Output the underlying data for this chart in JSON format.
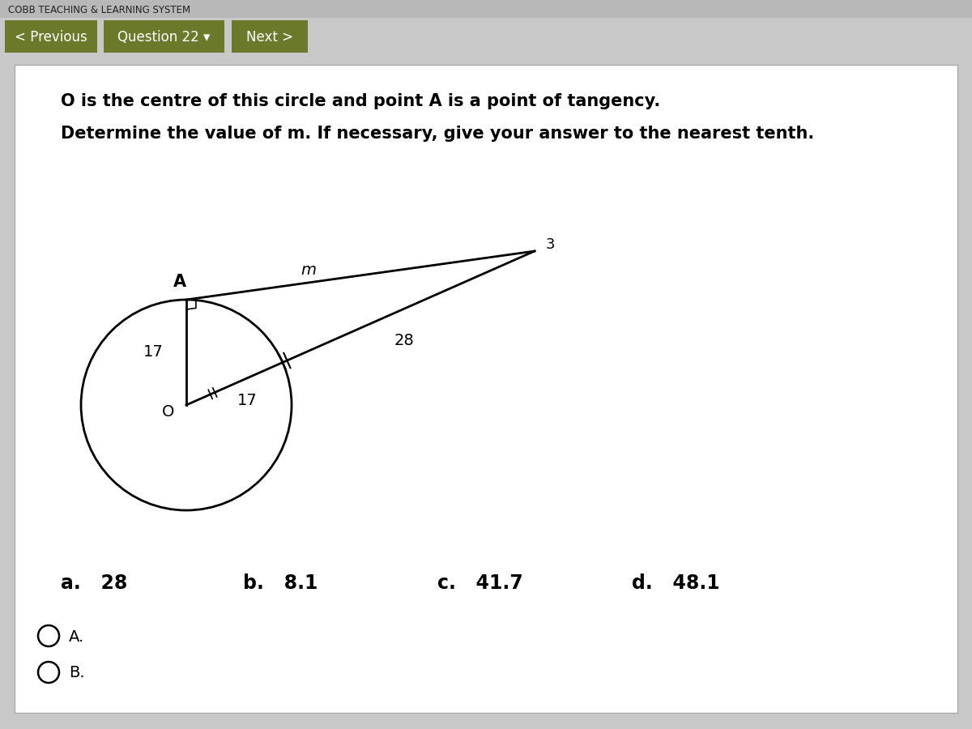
{
  "bg_color": "#c8c8c8",
  "nav_bg": "#6b7a2a",
  "header_text": "COBB TEACHING & LEARNING SYSTEM",
  "nav_prev": "< Previous",
  "nav_q22": "Question 22 ▾",
  "nav_next": "Next >",
  "question_text_line1": "O is the centre of this circle and point A is a point of tangency.",
  "question_text_line2": "Determine the value of m. If necessary, give your answer to the nearest tenth.",
  "choices": [
    "a.   28",
    "b.   8.1",
    "c.   41.7",
    "d.   48.1"
  ],
  "radio_labels": [
    "A.",
    "B."
  ],
  "label_O": "O",
  "label_A": "A",
  "label_m": "m",
  "label_28": "28",
  "label_17_oa": "17",
  "label_17_ob": "17",
  "label_3": "3"
}
